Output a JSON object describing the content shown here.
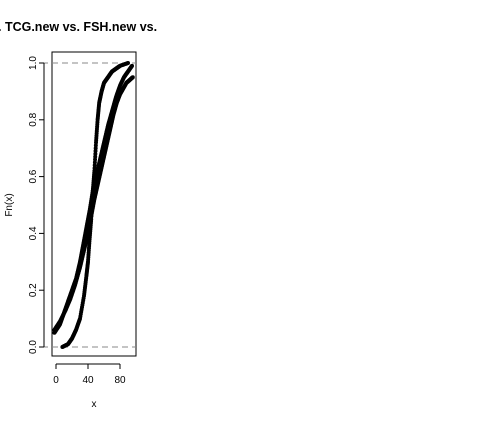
{
  "chart_data": {
    "type": "scatter",
    "title": ". TCG.new vs. FSH.new vs.",
    "xlabel": "x",
    "ylabel": "Fn(x)",
    "xlim": [
      -5,
      100
    ],
    "ylim": [
      0,
      1
    ],
    "x_ticks": [
      "0",
      "40",
      "80"
    ],
    "y_ticks": [
      "0.0",
      "0.2",
      "0.4",
      "0.6",
      "0.8",
      "1.0"
    ],
    "reference_lines": [
      0,
      1
    ],
    "grid": false,
    "legend": "none",
    "colors": {
      "points": "#000000",
      "reference": "#888888"
    },
    "series": [
      {
        "points": [
          [
            -2,
            0.05
          ],
          [
            5,
            0.08
          ],
          [
            10,
            0.12
          ],
          [
            15,
            0.16
          ],
          [
            20,
            0.2
          ],
          [
            25,
            0.24
          ],
          [
            30,
            0.3
          ],
          [
            34,
            0.36
          ],
          [
            38,
            0.42
          ],
          [
            42,
            0.48
          ],
          [
            46,
            0.55
          ],
          [
            50,
            0.6
          ],
          [
            55,
            0.66
          ],
          [
            60,
            0.72
          ],
          [
            65,
            0.78
          ],
          [
            70,
            0.83
          ],
          [
            75,
            0.88
          ],
          [
            80,
            0.92
          ],
          [
            85,
            0.95
          ],
          [
            90,
            0.97
          ],
          [
            95,
            0.99
          ]
        ]
      },
      {
        "points": [
          [
            8,
            0.0
          ],
          [
            15,
            0.01
          ],
          [
            20,
            0.03
          ],
          [
            25,
            0.06
          ],
          [
            30,
            0.1
          ],
          [
            35,
            0.18
          ],
          [
            38,
            0.25
          ],
          [
            40,
            0.3
          ],
          [
            42,
            0.38
          ],
          [
            44,
            0.45
          ],
          [
            46,
            0.55
          ],
          [
            48,
            0.62
          ],
          [
            50,
            0.72
          ],
          [
            52,
            0.8
          ],
          [
            54,
            0.86
          ],
          [
            57,
            0.9
          ],
          [
            60,
            0.93
          ],
          [
            65,
            0.95
          ],
          [
            70,
            0.97
          ],
          [
            75,
            0.98
          ],
          [
            80,
            0.99
          ],
          [
            90,
            1.0
          ]
        ]
      },
      {
        "points": [
          [
            -2,
            0.06
          ],
          [
            5,
            0.09
          ],
          [
            12,
            0.13
          ],
          [
            18,
            0.17
          ],
          [
            24,
            0.22
          ],
          [
            30,
            0.28
          ],
          [
            35,
            0.34
          ],
          [
            40,
            0.4
          ],
          [
            44,
            0.46
          ],
          [
            48,
            0.52
          ],
          [
            52,
            0.57
          ],
          [
            56,
            0.62
          ],
          [
            60,
            0.67
          ],
          [
            64,
            0.72
          ],
          [
            68,
            0.77
          ],
          [
            72,
            0.82
          ],
          [
            76,
            0.86
          ],
          [
            80,
            0.89
          ],
          [
            84,
            0.91
          ],
          [
            88,
            0.93
          ],
          [
            92,
            0.94
          ],
          [
            96,
            0.95
          ]
        ]
      }
    ]
  }
}
